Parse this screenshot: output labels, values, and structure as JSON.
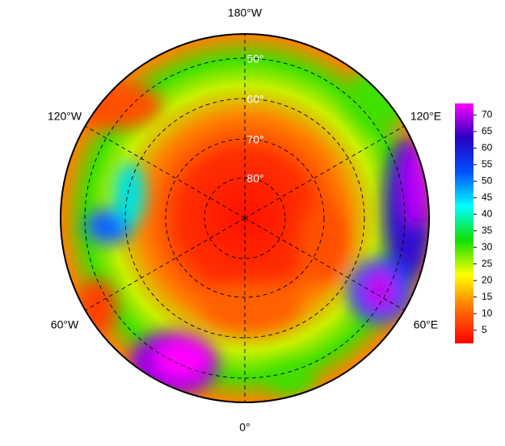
{
  "map": {
    "meridian_labels": [
      "180°W",
      "120°W",
      "60°W",
      "0°",
      "60°E",
      "120°E"
    ],
    "parallel_labels": [
      "50°",
      "60°",
      "70°",
      "80°"
    ],
    "colorbar": {
      "lim": [
        1,
        73.5
      ],
      "ticks": [
        5,
        10,
        15,
        20,
        25,
        30,
        35,
        40,
        45,
        50,
        55,
        60,
        65,
        70
      ],
      "colors": [
        "#ff0000",
        "#ff7000",
        "#ffff00",
        "#10e000",
        "#00ffff",
        "#0050ff",
        "#2800c0",
        "#ff00ff"
      ]
    }
  }
}
